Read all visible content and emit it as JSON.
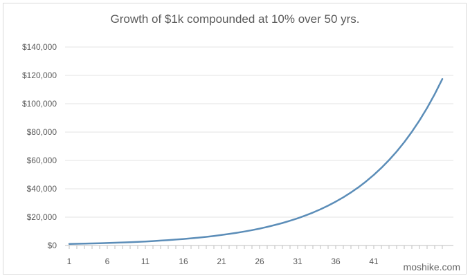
{
  "watermark": "moshike.com",
  "chart_data": {
    "type": "line",
    "title": "Growth of $1k compounded at 10% over 50 yrs.",
    "xlabel": "",
    "ylabel": "",
    "x_tick_labels": [
      "1",
      "6",
      "11",
      "16",
      "21",
      "26",
      "31",
      "36",
      "41"
    ],
    "y_tick_labels": [
      "$0",
      "$20,000",
      "$40,000",
      "$60,000",
      "$80,000",
      "$100,000",
      "$120,000",
      "$140,000"
    ],
    "ylim": [
      0,
      140000
    ],
    "grid": true,
    "legend": "none",
    "line_color": "#5b8db8",
    "x": [
      1,
      2,
      3,
      4,
      5,
      6,
      7,
      8,
      9,
      10,
      11,
      12,
      13,
      14,
      15,
      16,
      17,
      18,
      19,
      20,
      21,
      22,
      23,
      24,
      25,
      26,
      27,
      28,
      29,
      30,
      31,
      32,
      33,
      34,
      35,
      36,
      37,
      38,
      39,
      40,
      41,
      42,
      43,
      44,
      45,
      46,
      47,
      48,
      49,
      50
    ],
    "values": [
      1100,
      1210,
      1331,
      1464,
      1611,
      1772,
      1949,
      2144,
      2358,
      2594,
      2853,
      3138,
      3452,
      3797,
      4177,
      4595,
      5054,
      5560,
      6116,
      6727,
      7400,
      8140,
      8954,
      9850,
      10835,
      11918,
      13110,
      14421,
      15863,
      17449,
      19194,
      21114,
      23225,
      25548,
      28102,
      30913,
      34004,
      37404,
      41145,
      45259,
      49785,
      54764,
      60240,
      66264,
      72890,
      80180,
      88197,
      97017,
      106719,
      117391
    ]
  }
}
